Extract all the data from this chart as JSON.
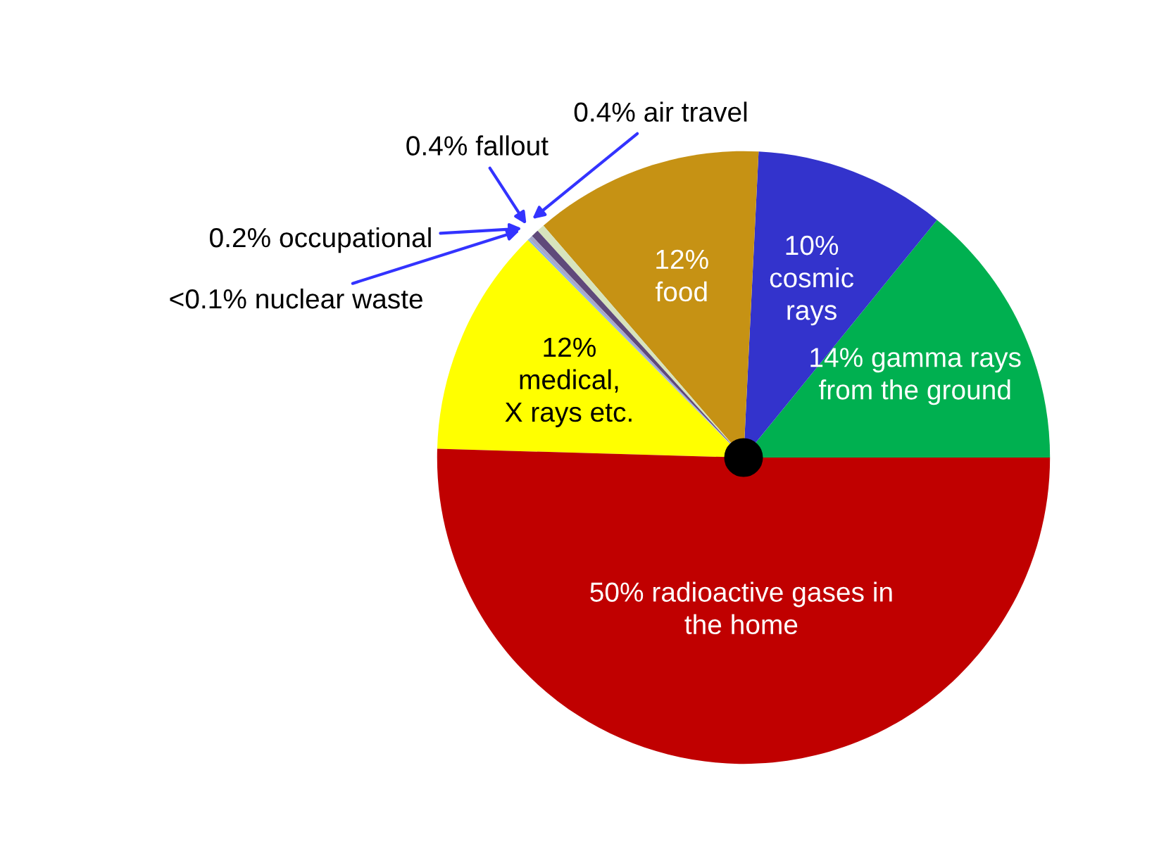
{
  "chart_data": {
    "type": "pie",
    "categories": [
      "gamma rays\nfrom the ground",
      "cosmic\nrays",
      "food",
      "air travel",
      "fallout",
      "occupational",
      "nuclear waste",
      "medical,\nX rays etc.",
      "radioactive gases in\nthe home"
    ],
    "values": [
      14,
      10,
      12,
      0.4,
      0.4,
      0.2,
      0.1,
      12,
      50
    ],
    "value_labels": [
      "14%",
      "10%",
      "12%",
      "0.4%",
      "0.4%",
      "0.2%",
      "<0.1%",
      "12%",
      "50%"
    ],
    "colors": [
      "#00b050",
      "#3333cc",
      "#c69214",
      "#d7e4bd",
      "#5f497a",
      "#a6a6c8",
      "#8db3e2",
      "#ffff00",
      "#c00000"
    ],
    "legend": false
  }
}
